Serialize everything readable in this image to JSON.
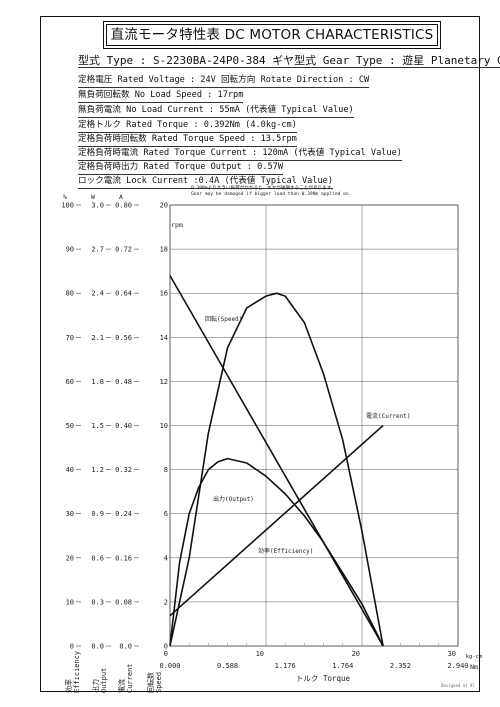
{
  "title": "直流モータ特性表 DC MOTOR CHARACTERISTICS",
  "specs": {
    "type": "型式 Type : S-2230BA-24P0-384   ギヤ型式 Gear Type : 遊星  Planetary Gear",
    "rated_voltage": "定格電圧 Rated Voltage : 24V   回転方向 Rotate Direction : CW",
    "no_load_speed": "無負荷回転数 No Load Speed : 17rpm",
    "no_load_current": "無負荷電流 No Load Current : 55mA (代表値 Typical Value)",
    "rated_torque": "定格トルク Rated Torque : 0.392Nm (4.0kg-cm)",
    "rated_torque_speed": "定格負荷時回転数 Rated Torque Speed : 13.5rpm",
    "rated_torque_current": "定格負荷時電流 Rated Torque Current : 120mA (代表値 Typical Value)",
    "rated_torque_output": "定格負荷時出力 Rated Torque Output : 0.57W",
    "lock_current": "ロック電流 Lock Current :0.4A (代表値 Typical Value)"
  },
  "note": {
    "line1": "0.39Nmより大きい負荷がかかると、ギヤが破損することがあります。",
    "line2": "Gear may be damaged if bigger load than 0.39Nm applied on."
  },
  "footer": "Designed at 97",
  "chart_data": {
    "type": "line",
    "x_axis": {
      "label": "トルク Torque",
      "range": [
        0,
        30
      ],
      "ticks_kgcm": [
        0,
        10,
        20,
        30
      ],
      "ticks_Nm": [
        "0.000",
        "0.588",
        "1.176",
        "1.764",
        "2.352",
        "2.940"
      ],
      "unit_kgcm": "kg-cm",
      "unit_Nm": "Nm"
    },
    "y_axes": [
      {
        "label": "回転数 Speed",
        "unit": "rpm",
        "ticks": [
          "0",
          "2",
          "4",
          "6",
          "8",
          "10",
          "12",
          "14",
          "16",
          "18",
          "20"
        ],
        "range": [
          0,
          20
        ]
      },
      {
        "label": "電流 Current",
        "unit": "A",
        "ticks": [
          "0.0",
          "0.08",
          "0.16",
          "0.24",
          "0.32",
          "0.40",
          "0.48",
          "0.56",
          "0.64",
          "0.72",
          "0.80"
        ],
        "range": [
          0,
          0.8
        ]
      },
      {
        "label": "出力 Output",
        "unit": "W",
        "ticks": [
          "0.0",
          "0.3",
          "0.6",
          "0.9",
          "1.2",
          "1.5",
          "1.8",
          "2.1",
          "2.4",
          "2.7",
          "3.0"
        ],
        "range": [
          0,
          3.0
        ]
      },
      {
        "label": "効率 Efficiency",
        "unit": "%",
        "ticks": [
          "0",
          "10",
          "20",
          "30",
          "40",
          "50",
          "60",
          "70",
          "80",
          "90",
          "100"
        ],
        "range": [
          0,
          100
        ]
      }
    ],
    "series": [
      {
        "name": "回転(Speed)",
        "axis": "rpm",
        "x": [
          0,
          22.2
        ],
        "y": [
          16.8,
          0
        ]
      },
      {
        "name": "電流(Current)",
        "axis": "A",
        "x": [
          0,
          22.2
        ],
        "y": [
          0.055,
          0.4
        ]
      },
      {
        "name": "出力(Output)",
        "axis": "W",
        "x": [
          0,
          2,
          4,
          6,
          8,
          10,
          11.1,
          12,
          14,
          16,
          18,
          20,
          22.2
        ],
        "y": [
          0,
          0.6,
          1.45,
          2.03,
          2.3,
          2.38,
          2.4,
          2.38,
          2.2,
          1.85,
          1.4,
          0.78,
          0
        ]
      },
      {
        "name": "効率(Efficiency)",
        "axis": "%",
        "x": [
          0,
          1,
          2,
          3,
          4,
          5,
          6,
          8,
          10,
          12,
          14,
          16,
          18,
          20,
          22.2
        ],
        "y": [
          0,
          19,
          30,
          36,
          40,
          41.8,
          42.5,
          41.5,
          38.5,
          34.5,
          29.5,
          23.5,
          16.5,
          9.5,
          0
        ]
      }
    ],
    "grid": true
  }
}
